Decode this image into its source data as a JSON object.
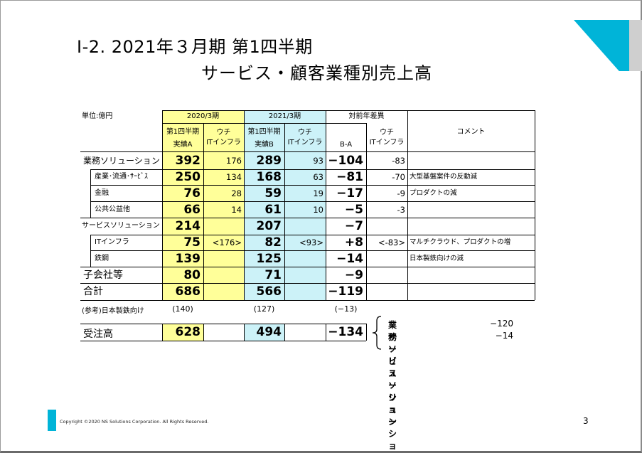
{
  "title": {
    "line1": "Ⅰ-2. 2021年３月期 第1四半期",
    "line2": "サービス・顧客業種別売上高"
  },
  "table": {
    "unit": "単位:億円",
    "period_a": "2020/3期",
    "period_b": "2021/3期",
    "diff_header": "対前年差異",
    "q1": "第1四半期",
    "actual_a": "実績A",
    "actual_b": "実績B",
    "uchi": "ウチ",
    "it_infra": "ITインフラ",
    "b_minus_a": "B-A",
    "comment": "コメント",
    "rows": [
      {
        "label": "業務ソリューション",
        "a": "392",
        "a_it": "176",
        "b": "289",
        "b_it": "93",
        "diff": "−104",
        "diff_it": "-83",
        "comment": ""
      },
      {
        "label": "産業･流通･ｻｰﾋﾞｽ",
        "a": "250",
        "a_it": "134",
        "b": "168",
        "b_it": "63",
        "diff": "−81",
        "diff_it": "-70",
        "comment": "大型基盤案件の反動減"
      },
      {
        "label": "金融",
        "a": "76",
        "a_it": "28",
        "b": "59",
        "b_it": "19",
        "diff": "−17",
        "diff_it": "-9",
        "comment": "プロダクトの減"
      },
      {
        "label": "公共公益他",
        "a": "66",
        "a_it": "14",
        "b": "61",
        "b_it": "10",
        "diff": "−5",
        "diff_it": "-3",
        "comment": ""
      },
      {
        "label": "サービスソリューション",
        "a": "214",
        "a_it": "",
        "b": "207",
        "b_it": "",
        "diff": "−7",
        "diff_it": "",
        "comment": ""
      },
      {
        "label": "ITインフラ",
        "a": "75",
        "a_it": "<176>",
        "b": "82",
        "b_it": "<93>",
        "diff": "+8",
        "diff_it": "<-83>",
        "comment": "マルチクラウド、プロダクトの増"
      },
      {
        "label": "鉄鋼",
        "a": "139",
        "a_it": "",
        "b": "125",
        "b_it": "",
        "diff": "−14",
        "diff_it": "",
        "comment": "日本製鉄向けの減"
      },
      {
        "label": "子会社等",
        "a": "80",
        "a_it": "",
        "b": "71",
        "b_it": "",
        "diff": "−9",
        "diff_it": "",
        "comment": ""
      },
      {
        "label": "合計",
        "a": "686",
        "a_it": "",
        "b": "566",
        "b_it": "",
        "diff": "−119",
        "diff_it": "",
        "comment": ""
      }
    ],
    "ref": {
      "label": "(参考)日本製鉄向け",
      "a": "(140)",
      "b": "(127)",
      "diff": "(−13)"
    },
    "orders": {
      "label": "受注高",
      "a": "628",
      "b": "494",
      "diff": "−134"
    },
    "orders_breakdown": [
      {
        "label": "業務ソリューション",
        "value": "−120"
      },
      {
        "label": "サービスソリューション",
        "value": "−14"
      }
    ]
  },
  "footer": {
    "copyright": "Copyright ©2020 NS Solutions Corporation. All Rights Reserved.",
    "page": "3"
  },
  "colors": {
    "accent": "#00b4d8",
    "period_a_fill": "#ffff99",
    "period_b_fill": "#ccf2f8"
  }
}
